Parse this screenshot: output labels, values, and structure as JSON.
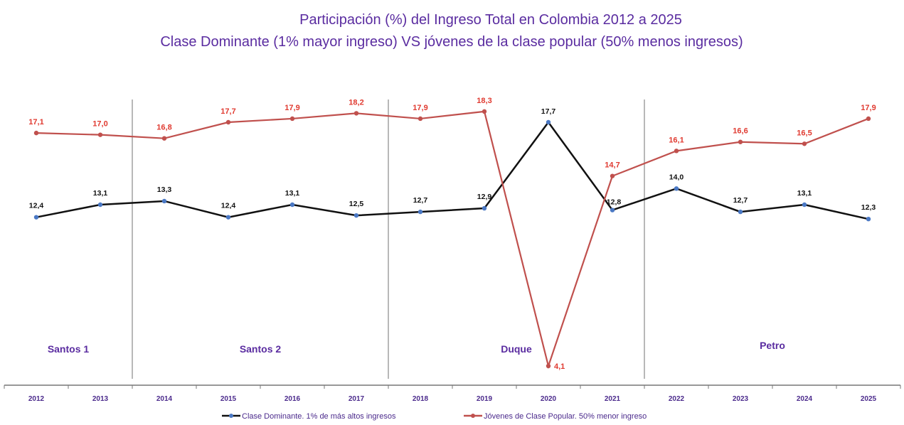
{
  "chart_data": {
    "type": "line",
    "title": "Participación (%) del Ingreso Total en Colombia 2012 a 2025",
    "subtitle": "Clase Dominante (1% mayor ingreso) VS jóvenes de la clase popular (50% menos ingresos)",
    "categories": [
      "2012",
      "2013",
      "2014",
      "2015",
      "2016",
      "2017",
      "2018",
      "2019",
      "2020",
      "2021",
      "2022",
      "2023",
      "2024",
      "2025"
    ],
    "series": [
      {
        "name": "Clase Dominante. 1% de más altos ingresos",
        "color": "#111111",
        "marker_color": "#4a78c4",
        "values": [
          12.4,
          13.1,
          13.3,
          12.4,
          13.1,
          12.5,
          12.7,
          12.9,
          17.7,
          12.8,
          14.0,
          12.7,
          13.1,
          12.3
        ],
        "labels": [
          "12,4",
          "13,1",
          "13,3",
          "12,4",
          "13,1",
          "12,5",
          "12,7",
          "12,9",
          "17,7",
          "12,8",
          "14,0",
          "12,7",
          "13,1",
          "12,3"
        ]
      },
      {
        "name": "Jóvenes de Clase Popular. 50% menor ingreso",
        "color": "#c0504d",
        "marker_color": "#c0504d",
        "values": [
          17.1,
          17.0,
          16.8,
          17.7,
          17.9,
          18.2,
          17.9,
          18.3,
          4.1,
          14.7,
          16.1,
          16.6,
          16.5,
          17.9
        ],
        "labels": [
          "17,1",
          "17,0",
          "16,8",
          "17,7",
          "17,9",
          "18,2",
          "17,9",
          "18,3",
          "4,1",
          "14,7",
          "16,1",
          "16,6",
          "16,5",
          "17,9"
        ]
      }
    ],
    "periods": [
      {
        "label": "Santos 1",
        "years": [
          "2012",
          "2013"
        ]
      },
      {
        "label": "Santos 2",
        "years": [
          "2014",
          "2017"
        ]
      },
      {
        "label": "Duque",
        "years": [
          "2018",
          "2021"
        ]
      },
      {
        "label": "Petro",
        "years": [
          "2022",
          "2025"
        ]
      }
    ],
    "ylim": [
      4.1,
      18.3
    ],
    "grid": false,
    "legend": "bottom"
  }
}
